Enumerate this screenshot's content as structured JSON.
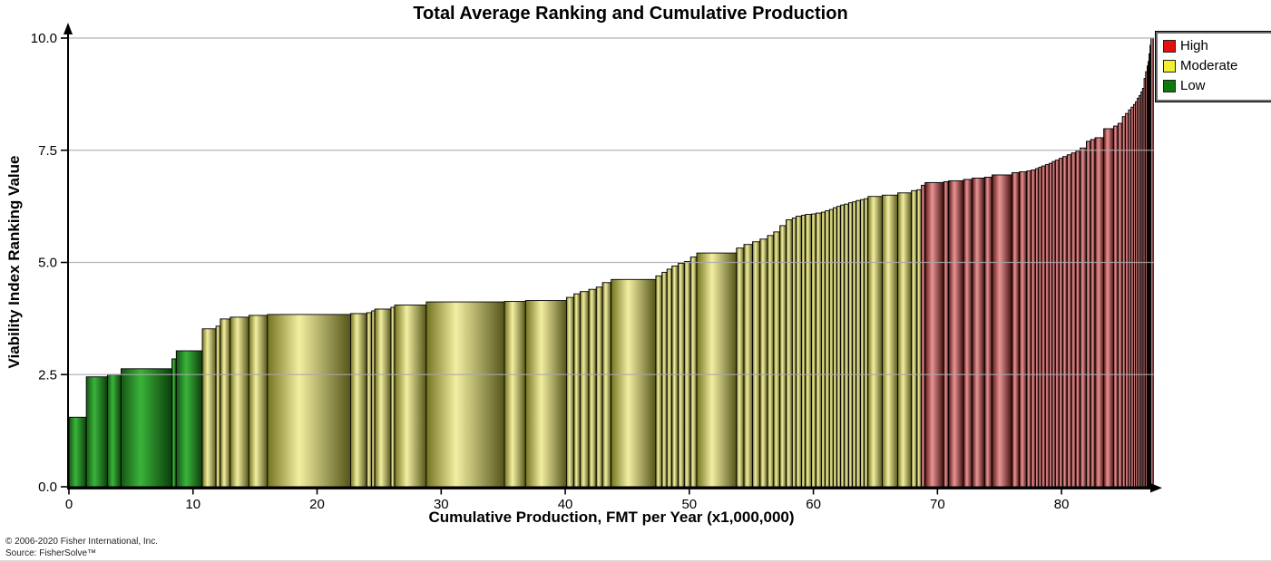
{
  "footer": {
    "line1": "© 2006-2020 Fisher International, Inc.",
    "line2": "Source: FisherSolve™"
  },
  "chart_data": {
    "type": "bar",
    "variant": "variable_width_sorted_cost_curve",
    "title": "Total Average Ranking and Cumulative Production",
    "xlabel": "Cumulative Production, FMT per Year (x1,000,000)",
    "ylabel": "Viability Index Ranking Value",
    "xlim": [
      0,
      87.45
    ],
    "ylim": [
      0,
      10
    ],
    "x_ticks": [
      "0",
      "10",
      "20",
      "30",
      "40",
      "50",
      "60",
      "70",
      "80"
    ],
    "y_ticks": [
      "0.0",
      "2.5",
      "5.0",
      "7.5",
      "10.0"
    ],
    "grid": {
      "horizontal": true,
      "drawn_over_bars": true,
      "color": "#a8a8a8"
    },
    "legend": {
      "position": "top-right",
      "entries": [
        {
          "label": "High",
          "color": "#e60f0f",
          "category": "high"
        },
        {
          "label": "Moderate",
          "color": "#f2ee30",
          "category": "moderate"
        },
        {
          "label": "Low",
          "color": "#0c7a0c",
          "category": "low"
        }
      ]
    },
    "bar_gradients": {
      "low": [
        "#155515",
        "#3ab43a",
        "#0c3d0c"
      ],
      "moderate": [
        "#73731f",
        "#f3efa2",
        "#55551a"
      ],
      "high": [
        "#5a1414",
        "#ea9494",
        "#3f0e0e"
      ]
    },
    "bars_note": "each bar = [production width (x1,000,000 FMT/yr), viability index ranking value, category]; bars sorted ascending by ranking",
    "bars": [
      [
        1.4,
        1.55,
        "low"
      ],
      [
        1.7,
        2.45,
        "low"
      ],
      [
        1.1,
        2.5,
        "low"
      ],
      [
        4.1,
        2.63,
        "low"
      ],
      [
        0.35,
        2.85,
        "low"
      ],
      [
        2.1,
        3.03,
        "low"
      ],
      [
        1.1,
        3.52,
        "moderate"
      ],
      [
        0.35,
        3.58,
        "moderate"
      ],
      [
        0.8,
        3.74,
        "moderate"
      ],
      [
        1.5,
        3.78,
        "moderate"
      ],
      [
        1.5,
        3.82,
        "moderate"
      ],
      [
        6.7,
        3.84,
        "moderate"
      ],
      [
        1.3,
        3.86,
        "moderate"
      ],
      [
        0.4,
        3.88,
        "moderate"
      ],
      [
        0.25,
        3.92,
        "moderate"
      ],
      [
        1.3,
        3.96,
        "moderate"
      ],
      [
        0.3,
        4.0,
        "moderate"
      ],
      [
        2.55,
        4.05,
        "moderate"
      ],
      [
        6.3,
        4.12,
        "moderate"
      ],
      [
        1.7,
        4.13,
        "moderate"
      ],
      [
        3.3,
        4.15,
        "moderate"
      ],
      [
        0.6,
        4.22,
        "moderate"
      ],
      [
        0.5,
        4.3,
        "moderate"
      ],
      [
        0.7,
        4.35,
        "moderate"
      ],
      [
        0.6,
        4.4,
        "moderate"
      ],
      [
        0.5,
        4.45,
        "moderate"
      ],
      [
        0.7,
        4.55,
        "moderate"
      ],
      [
        3.6,
        4.62,
        "moderate"
      ],
      [
        0.5,
        4.7,
        "moderate"
      ],
      [
        0.4,
        4.78,
        "moderate"
      ],
      [
        0.4,
        4.85,
        "moderate"
      ],
      [
        0.5,
        4.92,
        "moderate"
      ],
      [
        0.5,
        4.98,
        "moderate"
      ],
      [
        0.5,
        5.02,
        "moderate"
      ],
      [
        0.5,
        5.12,
        "moderate"
      ],
      [
        3.2,
        5.21,
        "moderate"
      ],
      [
        0.6,
        5.32,
        "moderate"
      ],
      [
        0.7,
        5.4,
        "moderate"
      ],
      [
        0.6,
        5.46,
        "moderate"
      ],
      [
        0.6,
        5.52,
        "moderate"
      ],
      [
        0.5,
        5.6,
        "moderate"
      ],
      [
        0.5,
        5.68,
        "moderate"
      ],
      [
        0.5,
        5.82,
        "moderate"
      ],
      [
        0.5,
        5.95,
        "moderate"
      ],
      [
        0.3,
        5.99,
        "moderate"
      ],
      [
        0.45,
        6.03,
        "moderate"
      ],
      [
        0.3,
        6.05,
        "moderate"
      ],
      [
        0.5,
        6.07,
        "moderate"
      ],
      [
        0.35,
        6.08,
        "moderate"
      ],
      [
        0.45,
        6.1,
        "moderate"
      ],
      [
        0.3,
        6.12,
        "moderate"
      ],
      [
        0.35,
        6.15,
        "moderate"
      ],
      [
        0.3,
        6.18,
        "moderate"
      ],
      [
        0.3,
        6.22,
        "moderate"
      ],
      [
        0.3,
        6.25,
        "moderate"
      ],
      [
        0.3,
        6.28,
        "moderate"
      ],
      [
        0.35,
        6.3,
        "moderate"
      ],
      [
        0.3,
        6.33,
        "moderate"
      ],
      [
        0.3,
        6.35,
        "moderate"
      ],
      [
        0.35,
        6.38,
        "moderate"
      ],
      [
        0.3,
        6.4,
        "moderate"
      ],
      [
        0.3,
        6.42,
        "moderate"
      ],
      [
        1.15,
        6.47,
        "moderate"
      ],
      [
        1.25,
        6.5,
        "moderate"
      ],
      [
        1.1,
        6.55,
        "moderate"
      ],
      [
        0.45,
        6.6,
        "moderate"
      ],
      [
        0.35,
        6.62,
        "moderate"
      ],
      [
        0.3,
        6.72,
        "high"
      ],
      [
        1.5,
        6.78,
        "high"
      ],
      [
        0.4,
        6.8,
        "high"
      ],
      [
        1.2,
        6.82,
        "high"
      ],
      [
        0.7,
        6.85,
        "high"
      ],
      [
        1.0,
        6.88,
        "high"
      ],
      [
        0.6,
        6.9,
        "high"
      ],
      [
        1.6,
        6.95,
        "high"
      ],
      [
        0.6,
        7.0,
        "high"
      ],
      [
        0.6,
        7.02,
        "high"
      ],
      [
        0.35,
        7.04,
        "high"
      ],
      [
        0.35,
        7.06,
        "high"
      ],
      [
        0.25,
        7.09,
        "high"
      ],
      [
        0.25,
        7.12,
        "high"
      ],
      [
        0.3,
        7.15,
        "high"
      ],
      [
        0.3,
        7.18,
        "high"
      ],
      [
        0.25,
        7.21,
        "high"
      ],
      [
        0.25,
        7.25,
        "high"
      ],
      [
        0.3,
        7.28,
        "high"
      ],
      [
        0.3,
        7.32,
        "high"
      ],
      [
        0.35,
        7.36,
        "high"
      ],
      [
        0.35,
        7.4,
        "high"
      ],
      [
        0.35,
        7.44,
        "high"
      ],
      [
        0.35,
        7.48,
        "high"
      ],
      [
        0.5,
        7.55,
        "high"
      ],
      [
        0.35,
        7.7,
        "high"
      ],
      [
        0.35,
        7.74,
        "high"
      ],
      [
        0.7,
        7.78,
        "high"
      ],
      [
        0.8,
        7.98,
        "high"
      ],
      [
        0.35,
        8.04,
        "high"
      ],
      [
        0.35,
        8.1,
        "high"
      ],
      [
        0.25,
        8.25,
        "high"
      ],
      [
        0.25,
        8.32,
        "high"
      ],
      [
        0.2,
        8.4,
        "high"
      ],
      [
        0.2,
        8.46,
        "high"
      ],
      [
        0.15,
        8.52,
        "high"
      ],
      [
        0.15,
        8.58,
        "high"
      ],
      [
        0.15,
        8.66,
        "high"
      ],
      [
        0.15,
        8.72,
        "high"
      ],
      [
        0.12,
        8.8,
        "high"
      ],
      [
        0.13,
        8.88,
        "high"
      ],
      [
        0.12,
        9.1,
        "high"
      ],
      [
        0.13,
        9.25,
        "high"
      ],
      [
        0.08,
        9.38,
        "high"
      ],
      [
        0.07,
        9.48,
        "high"
      ],
      [
        0.08,
        9.65,
        "high"
      ],
      [
        0.07,
        9.84,
        "high"
      ],
      [
        0.2,
        10.0,
        "high"
      ]
    ]
  }
}
